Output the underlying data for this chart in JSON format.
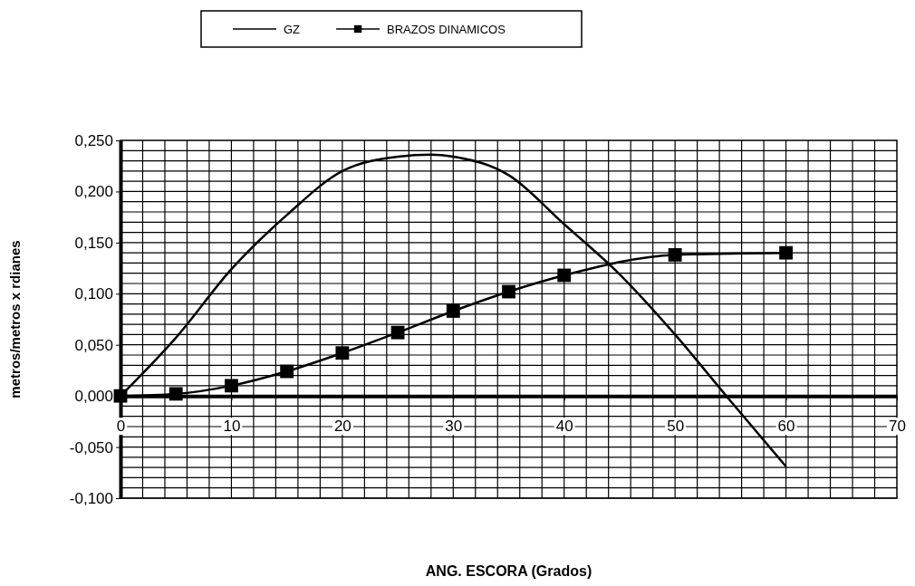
{
  "chart_data": {
    "type": "line",
    "xlabel": "ANG. ESCORA (Grados)",
    "ylabel": "metros/metros x rdianes",
    "xlim": [
      0,
      70
    ],
    "xticks": [
      0,
      10,
      20,
      30,
      40,
      50,
      60,
      70
    ],
    "ylim": [
      -0.1,
      0.25
    ],
    "yticks": [
      {
        "value": -0.1,
        "label": "-0,100"
      },
      {
        "value": -0.05,
        "label": "-0,050"
      },
      {
        "value": 0,
        "label": "0,000"
      },
      {
        "value": 0.05,
        "label": "0,050"
      },
      {
        "value": 0.1,
        "label": "0,100"
      },
      {
        "value": 0.15,
        "label": "0,150"
      },
      {
        "value": 0.2,
        "label": "0,200"
      },
      {
        "value": 0.25,
        "label": "0,250"
      }
    ],
    "grid": true,
    "legend": "top",
    "line_style": "solid",
    "series": [
      {
        "name": "GZ",
        "color": "#000000",
        "marker": "none",
        "x": [
          0,
          5,
          10,
          15,
          20,
          25,
          28,
          30,
          35,
          40,
          45,
          50,
          55,
          60
        ],
        "values": [
          0,
          0.057,
          0.124,
          0.177,
          0.22,
          0.234,
          0.236,
          0.234,
          0.216,
          0.168,
          0.119,
          0.06,
          -0.005,
          -0.069
        ]
      },
      {
        "name": "BRAZOS DINAMICOS",
        "color": "#000000",
        "marker": "square",
        "x": [
          0,
          5,
          10,
          15,
          20,
          25,
          30,
          35,
          40,
          50,
          60
        ],
        "values": [
          0,
          0.002,
          0.01,
          0.024,
          0.042,
          0.062,
          0.083,
          0.102,
          0.118,
          0.138,
          0.14
        ]
      }
    ]
  }
}
